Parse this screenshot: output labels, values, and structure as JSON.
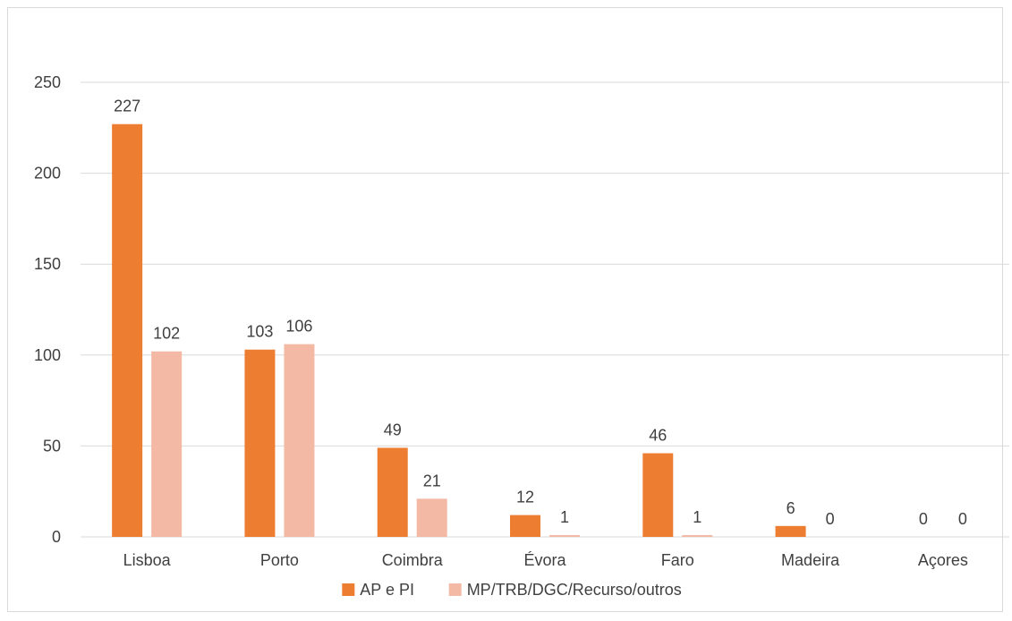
{
  "chart_data": {
    "type": "bar",
    "title": "",
    "xlabel": "",
    "ylabel": "",
    "categories": [
      "Lisboa",
      "Porto",
      "Coimbra",
      "Évora",
      "Faro",
      "Madeira",
      "Açores"
    ],
    "series": [
      {
        "name": "AP e PI",
        "color": "#ED7D31",
        "values": [
          227,
          103,
          49,
          12,
          46,
          6,
          0
        ]
      },
      {
        "name": "MP/TRB/DGC/Recurso/outros",
        "color": "#F4B9A4",
        "values": [
          102,
          106,
          21,
          1,
          1,
          0,
          0
        ]
      }
    ],
    "ylim": [
      0,
      250
    ],
    "yticks": [
      0,
      50,
      100,
      150,
      200,
      250
    ],
    "ytick_labels": [
      "0",
      "50",
      "100",
      "150",
      "200",
      "250"
    ],
    "grid": true,
    "legend_position": "bottom",
    "data_labels": true,
    "colors": {
      "grid": "#d9d9d9",
      "text": "#404040",
      "border": "#d9d9d9"
    }
  }
}
